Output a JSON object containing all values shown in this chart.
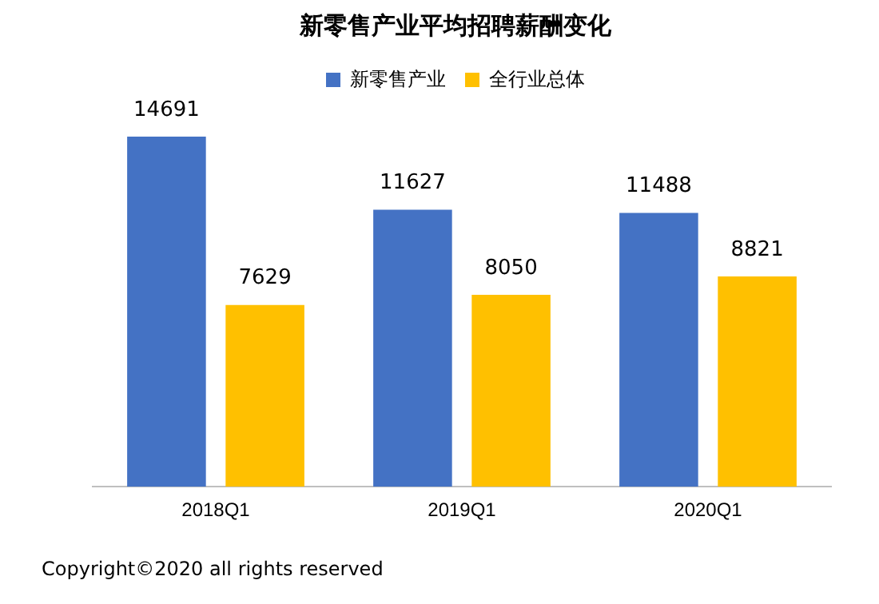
{
  "chart_data": {
    "type": "bar",
    "title": "新零售产业平均招聘薪酬变化",
    "categories": [
      "2018Q1",
      "2019Q1",
      "2020Q1"
    ],
    "series": [
      {
        "name": "新零售产业",
        "color": "#4472c4",
        "values": [
          14691,
          11627,
          11488
        ]
      },
      {
        "name": "全行业总体",
        "color": "#ffc000",
        "values": [
          7629,
          8050,
          8821
        ]
      }
    ],
    "relative": false,
    "data_labels": true,
    "legend": "top",
    "grid": false,
    "annotations": [
      "Copyright©2020 all rights reserved"
    ]
  }
}
